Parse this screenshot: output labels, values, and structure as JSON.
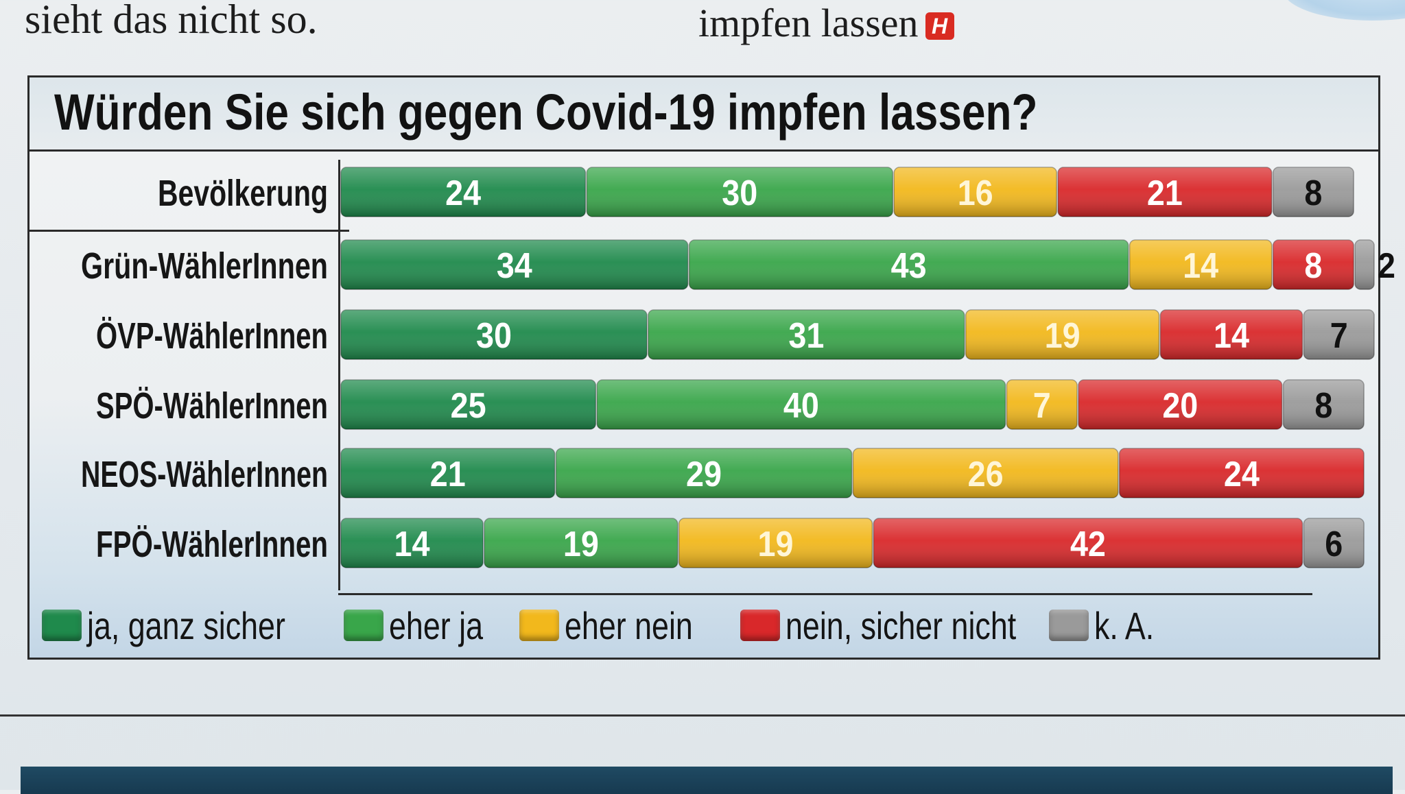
{
  "header": {
    "left_text": "sieht das nicht so.",
    "center_text": "impfen lassen",
    "logo_letter": "H"
  },
  "colors": {
    "ja_ganz_sicher": "#1f8a4c",
    "eher_ja": "#39a64a",
    "eher_nein": "#f2b81c",
    "nein_sicher_nicht": "#d9282a",
    "k_a": "#9a9a9a"
  },
  "chart_data": {
    "type": "bar",
    "orientation": "horizontal",
    "stacked": true,
    "title": "Würden Sie sich gegen Covid-19 impfen lassen?",
    "categories": [
      "Bevölkerung",
      "Grün-WählerInnen",
      "ÖVP-WählerInnen",
      "SPÖ-WählerInnen",
      "NEOS-WählerInnen",
      "FPÖ-WählerInnen"
    ],
    "series": [
      {
        "name": "ja, ganz sicher",
        "values": [
          24,
          34,
          30,
          25,
          21,
          14
        ]
      },
      {
        "name": "eher ja",
        "values": [
          30,
          43,
          31,
          40,
          29,
          19
        ]
      },
      {
        "name": "eher nein",
        "values": [
          16,
          14,
          19,
          7,
          26,
          19
        ]
      },
      {
        "name": "nein, sicher nicht",
        "values": [
          21,
          8,
          14,
          20,
          24,
          42
        ]
      },
      {
        "name": "k. A.",
        "values": [
          8,
          2,
          7,
          8,
          null,
          6
        ]
      }
    ],
    "legend_position": "bottom",
    "grid": false
  }
}
